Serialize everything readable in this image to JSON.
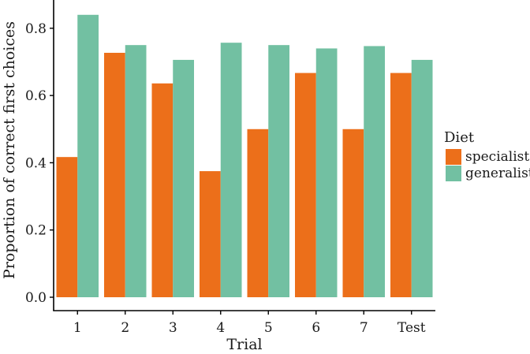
{
  "chart_data": {
    "type": "bar",
    "title": "",
    "xlabel": "Trial",
    "ylabel": "Proportion of correct first choices",
    "categories": [
      "1",
      "2",
      "3",
      "4",
      "5",
      "6",
      "7",
      "Test"
    ],
    "series": [
      {
        "name": "specialist",
        "color": "#ec6f1a",
        "values": [
          0.417,
          0.727,
          0.636,
          0.375,
          0.5,
          0.667,
          0.5,
          0.667
        ]
      },
      {
        "name": "generalist",
        "color": "#72c0a2",
        "values": [
          0.84,
          0.75,
          0.706,
          0.757,
          0.75,
          0.74,
          0.747,
          0.706
        ]
      }
    ],
    "ylim": [
      0,
      0.87
    ],
    "yticks": [
      0.0,
      0.2,
      0.4,
      0.6,
      0.8
    ],
    "ytick_labels": [
      "0.0",
      "0.2",
      "0.4",
      "0.6",
      "0.8"
    ],
    "legend": {
      "title": "Diet",
      "placement": "right"
    },
    "grid": false
  }
}
